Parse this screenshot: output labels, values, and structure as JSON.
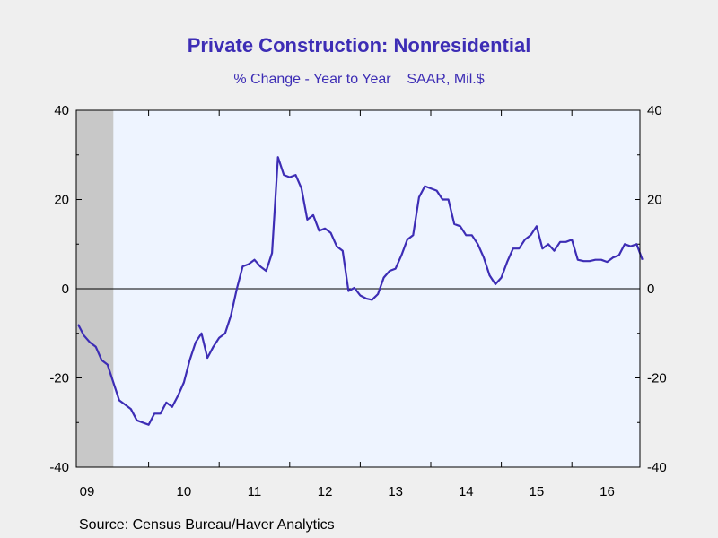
{
  "chart_data": {
    "type": "line",
    "title": "Private Construction: Nonresidential",
    "subtitle": "% Change - Year to Year    SAAR, Mil.$",
    "source": "Source:  Census Bureau/Haver Analytics",
    "x_tick_labels": [
      "09",
      "10",
      "11",
      "12",
      "13",
      "14",
      "15",
      "16"
    ],
    "y_ticks": [
      40,
      20,
      0,
      -20,
      -40
    ],
    "ylim": [
      -40,
      40
    ],
    "grid": false,
    "recession_shading": {
      "start": "2009-01",
      "end": "2009-06"
    },
    "colors": {
      "line": "#3d2db5",
      "plot_bg": "#eef4ff",
      "recession": "#c8c8c8",
      "title": "#3d2db5"
    },
    "series": [
      {
        "start": "2009-01",
        "frequency": "monthly",
        "values": [
          -8,
          -10.5,
          -12,
          -13,
          -16,
          -17,
          -21,
          -25,
          -26,
          -27,
          -29.5,
          -30,
          -30.5,
          -28,
          -28,
          -25.5,
          -26.5,
          -24,
          -21,
          -16,
          -12,
          -10,
          -15.5,
          -13,
          -11,
          -10,
          -6,
          0,
          5,
          5.5,
          6.5,
          5,
          4,
          8,
          29.5,
          25.5,
          25,
          25.5,
          22.5,
          15.5,
          16.5,
          13,
          13.5,
          12.5,
          9.5,
          8.5,
          -0.5,
          0.2,
          -1.5,
          -2.2,
          -2.5,
          -1.2,
          2.5,
          4,
          4.5,
          7.5,
          11,
          12,
          20.5,
          23,
          22.5,
          22,
          20,
          20,
          14.5,
          14,
          12,
          12,
          10,
          7,
          3,
          1,
          2.5,
          6,
          9,
          9,
          11,
          12,
          14,
          9,
          10,
          8.5,
          10.5,
          10.5,
          11,
          6.5,
          6.2,
          6.2,
          6.5,
          6.5,
          6,
          7,
          7.5,
          10,
          9.5,
          10,
          6.5
        ]
      }
    ]
  }
}
